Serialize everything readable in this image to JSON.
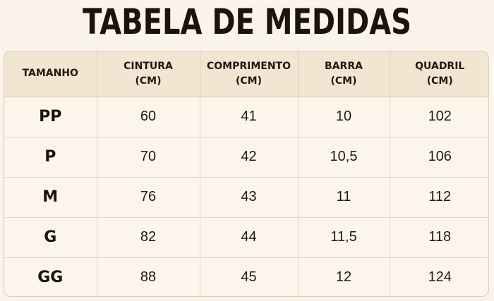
{
  "title": "TABELA DE MEDIDAS",
  "headers": [
    {
      "line1": "TAMANHO",
      "line2": ""
    },
    {
      "line1": "CINTURA",
      "line2": "(CM)"
    },
    {
      "line1": "COMPRIMENTO",
      "line2": "(CM)"
    },
    {
      "line1": "BARRA",
      "line2": "(CM)"
    },
    {
      "line1": "QUADRIL",
      "line2": "(CM)"
    }
  ],
  "rows": [
    [
      "PP",
      "60",
      "41",
      "10",
      "102"
    ],
    [
      "P",
      "70",
      "42",
      "10,5",
      "106"
    ],
    [
      "M",
      "76",
      "43",
      "11",
      "112"
    ],
    [
      "G",
      "82",
      "44",
      "11,5",
      "118"
    ],
    [
      "GG",
      "88",
      "45",
      "12",
      "124"
    ]
  ]
}
